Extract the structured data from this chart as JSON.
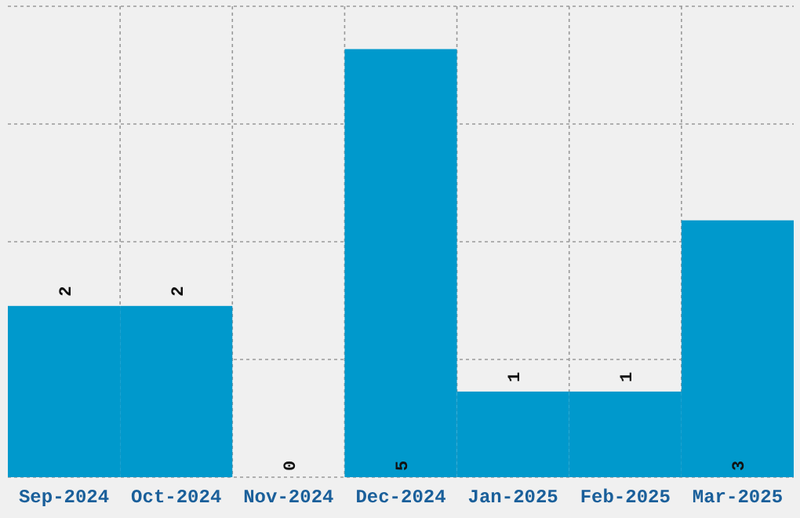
{
  "chart_data": {
    "type": "bar",
    "categories": [
      "Sep-2024",
      "Oct-2024",
      "Nov-2024",
      "Dec-2024",
      "Jan-2025",
      "Feb-2025",
      "Mar-2025"
    ],
    "values": [
      2,
      2,
      0,
      5,
      1,
      1,
      3
    ],
    "color": "#0099cc",
    "data_labels": true,
    "ylim": [
      0,
      5.5
    ],
    "yticks": [
      {
        "value": 0,
        "label": null
      },
      {
        "value": 1.375,
        "label": null
      },
      {
        "value": 2.75,
        "label": null
      },
      {
        "value": 4.125,
        "label": null
      },
      {
        "value": 5.5,
        "label": null
      }
    ],
    "grid": true,
    "tick_labels": "x"
  }
}
